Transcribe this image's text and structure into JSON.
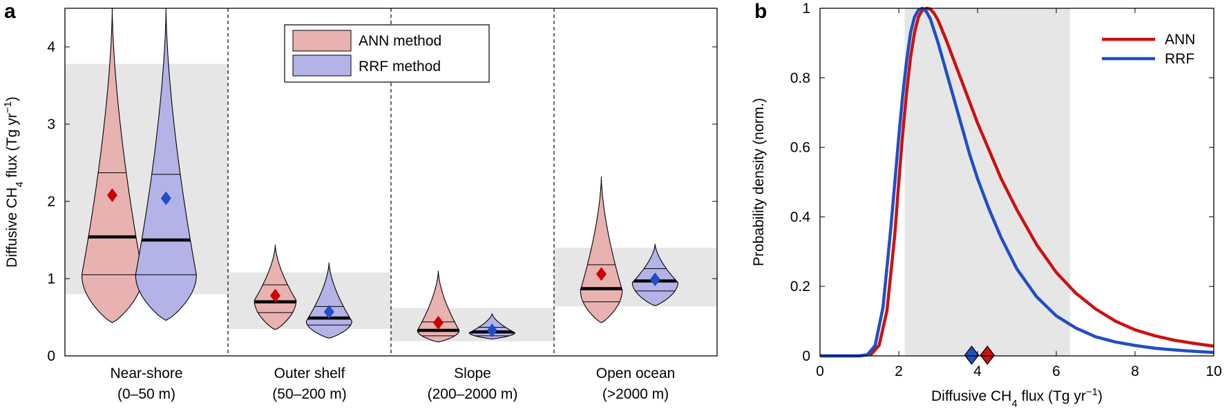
{
  "chart_data": [
    {
      "panel_label": "a",
      "type": "violin",
      "ylabel": {
        "pre": "Diffusive CH",
        "sub": "4",
        "mid": " flux (Tg yr",
        "sup": "−1",
        "post": ")"
      },
      "ylim": [
        0,
        4.5
      ],
      "yticks": [
        "0",
        "1",
        "2",
        "3",
        "4"
      ],
      "legend": [
        {
          "name": "ANN method",
          "fill": "#e8b2b0",
          "marker": "#cc0000"
        },
        {
          "name": "RRF method",
          "fill": "#b3b3e8",
          "marker": "#1f4fc4"
        }
      ],
      "categories": [
        {
          "line1": "Near-shore",
          "line2": "(0–50 m)",
          "band": [
            0.8,
            3.78
          ],
          "violins": [
            {
              "series": "ANN method",
              "min": 0.43,
              "max": 4.5,
              "mode": 1.05,
              "width": 0.8,
              "median": 1.54,
              "q1": 1.05,
              "q3": 2.37,
              "mean": 2.08
            },
            {
              "series": "RRF method",
              "min": 0.46,
              "max": 4.5,
              "mode": 1.05,
              "width": 0.8,
              "median": 1.5,
              "q1": 1.05,
              "q3": 2.35,
              "mean": 2.04
            }
          ]
        },
        {
          "line1": "Outer shelf",
          "line2": "(50–200 m)",
          "band": [
            0.35,
            1.08
          ],
          "violins": [
            {
              "series": "ANN method",
              "min": 0.34,
              "max": 1.44,
              "mode": 0.72,
              "width": 0.55,
              "median": 0.7,
              "q1": 0.56,
              "q3": 0.92,
              "mean": 0.78
            },
            {
              "series": "RRF method",
              "min": 0.23,
              "max": 1.21,
              "mode": 0.45,
              "width": 0.6,
              "median": 0.49,
              "q1": 0.4,
              "q3": 0.64,
              "mean": 0.57
            }
          ]
        },
        {
          "line1": "Slope",
          "line2": "(200–2000 m)",
          "band": [
            0.19,
            0.62
          ],
          "violins": [
            {
              "series": "ANN method",
              "min": 0.18,
              "max": 1.1,
              "mode": 0.33,
              "width": 0.55,
              "median": 0.33,
              "q1": 0.26,
              "q3": 0.44,
              "mean": 0.43
            },
            {
              "series": "RRF method",
              "min": 0.22,
              "max": 0.55,
              "mode": 0.3,
              "width": 0.6,
              "median": 0.31,
              "q1": 0.26,
              "q3": 0.37,
              "mean": 0.33
            }
          ]
        },
        {
          "line1": "Open ocean",
          "line2": "(>2000 m)",
          "band": [
            0.64,
            1.4
          ],
          "violins": [
            {
              "series": "ANN method",
              "min": 0.43,
              "max": 2.32,
              "mode": 0.85,
              "width": 0.55,
              "median": 0.87,
              "q1": 0.7,
              "q3": 1.18,
              "mean": 1.06
            },
            {
              "series": "RRF method",
              "min": 0.65,
              "max": 1.45,
              "mode": 0.95,
              "width": 0.6,
              "median": 0.97,
              "q1": 0.84,
              "q3": 1.13,
              "mean": 0.99
            }
          ]
        }
      ]
    },
    {
      "panel_label": "b",
      "type": "line",
      "xlabel": {
        "pre": "Diffusive CH",
        "sub": "4",
        "mid": " flux (Tg yr",
        "sup": "−1",
        "post": ")"
      },
      "ylabel": "Probability density (norm.)",
      "xlim": [
        0,
        10
      ],
      "ylim": [
        0,
        1
      ],
      "xticks": [
        "0",
        "2",
        "4",
        "6",
        "8",
        "10"
      ],
      "yticks": [
        "0",
        "0.2",
        "0.4",
        "0.6",
        "0.8",
        "1"
      ],
      "shaded_range": [
        2.15,
        6.35
      ],
      "series": [
        {
          "name": "ANN",
          "color": "#cc1111",
          "x": [
            0,
            1,
            1.3,
            1.5,
            1.7,
            1.9,
            2.0,
            2.1,
            2.2,
            2.3,
            2.4,
            2.5,
            2.6,
            2.7,
            2.8,
            2.9,
            3.0,
            3.2,
            3.4,
            3.6,
            3.8,
            4.0,
            4.3,
            4.6,
            5.0,
            5.5,
            6.0,
            6.5,
            7.0,
            7.5,
            8.0,
            8.5,
            9.0,
            9.5,
            10
          ],
          "y": [
            0,
            0,
            0.005,
            0.03,
            0.13,
            0.35,
            0.5,
            0.64,
            0.76,
            0.86,
            0.93,
            0.975,
            0.995,
            1.0,
            0.998,
            0.985,
            0.965,
            0.91,
            0.85,
            0.79,
            0.73,
            0.67,
            0.59,
            0.51,
            0.42,
            0.32,
            0.24,
            0.18,
            0.135,
            0.1,
            0.075,
            0.058,
            0.045,
            0.036,
            0.028
          ],
          "mean": 4.25
        },
        {
          "name": "RRF",
          "color": "#1f4fc4",
          "x": [
            0,
            1,
            1.2,
            1.4,
            1.6,
            1.8,
            1.9,
            2.0,
            2.1,
            2.2,
            2.3,
            2.4,
            2.5,
            2.6,
            2.7,
            2.8,
            3.0,
            3.2,
            3.4,
            3.6,
            3.8,
            4.0,
            4.3,
            4.6,
            5.0,
            5.5,
            6.0,
            6.5,
            7.0,
            7.5,
            8.0,
            8.5,
            9.0,
            9.5,
            10
          ],
          "y": [
            0,
            0,
            0.003,
            0.03,
            0.14,
            0.37,
            0.5,
            0.63,
            0.75,
            0.85,
            0.93,
            0.975,
            0.995,
            1.0,
            0.99,
            0.97,
            0.9,
            0.82,
            0.74,
            0.66,
            0.58,
            0.51,
            0.42,
            0.34,
            0.25,
            0.17,
            0.115,
            0.08,
            0.055,
            0.04,
            0.03,
            0.022,
            0.017,
            0.013,
            0.01
          ],
          "mean": 3.85
        }
      ]
    }
  ]
}
